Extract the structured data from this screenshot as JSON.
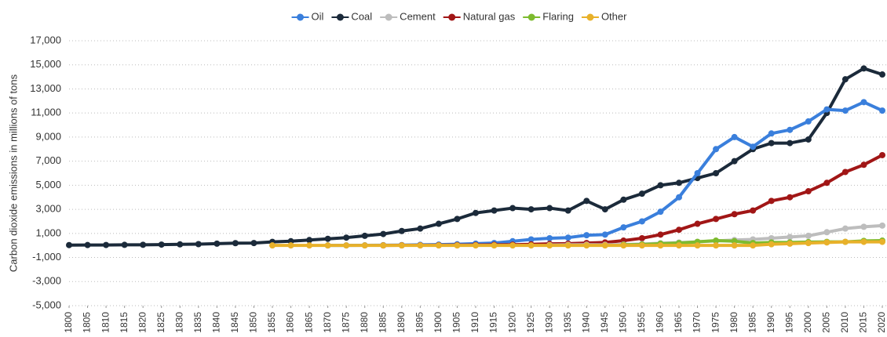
{
  "chart_data": {
    "type": "line",
    "y_label": "Carbon dioxide emissions in millions of tons",
    "x": [
      1800,
      1805,
      1810,
      1815,
      1820,
      1825,
      1830,
      1835,
      1840,
      1845,
      1850,
      1855,
      1860,
      1865,
      1870,
      1875,
      1880,
      1885,
      1890,
      1895,
      1900,
      1905,
      1910,
      1915,
      1920,
      1925,
      1930,
      1935,
      1940,
      1945,
      1950,
      1955,
      1960,
      1965,
      1970,
      1975,
      1980,
      1985,
      1990,
      1995,
      2000,
      2005,
      2010,
      2015,
      2020
    ],
    "xlim": [
      1800,
      2020
    ],
    "xticks": [
      1800,
      1805,
      1810,
      1815,
      1820,
      1825,
      1830,
      1835,
      1840,
      1845,
      1850,
      1855,
      1860,
      1865,
      1870,
      1875,
      1880,
      1885,
      1890,
      1895,
      1900,
      1905,
      1910,
      1915,
      1920,
      1925,
      1930,
      1935,
      1940,
      1945,
      1950,
      1955,
      1960,
      1965,
      1970,
      1975,
      1980,
      1985,
      1990,
      1995,
      2000,
      2005,
      2010,
      2015,
      2020
    ],
    "ylim": [
      -5000,
      17000
    ],
    "yticks": [
      {
        "value": -5000,
        "label": "-5,000"
      },
      {
        "value": -3000,
        "label": "-3,000"
      },
      {
        "value": -1000,
        "label": "-1,000"
      },
      {
        "value": 1000,
        "label": "1,000"
      },
      {
        "value": 3000,
        "label": "3,000"
      },
      {
        "value": 5000,
        "label": "5,000"
      },
      {
        "value": 7000,
        "label": "7,000"
      },
      {
        "value": 9000,
        "label": "9,000"
      },
      {
        "value": 11000,
        "label": "11,000"
      },
      {
        "value": 13000,
        "label": "13,000"
      },
      {
        "value": 15000,
        "label": "15,000"
      },
      {
        "value": 17000,
        "label": "17,000"
      }
    ],
    "grid": true,
    "legend": "top",
    "series": [
      {
        "name": "Oil",
        "color": "#3a7fdc",
        "values": [
          null,
          null,
          null,
          null,
          null,
          null,
          null,
          null,
          null,
          null,
          null,
          null,
          null,
          null,
          2,
          5,
          10,
          20,
          30,
          50,
          70,
          100,
          150,
          200,
          350,
          500,
          600,
          650,
          850,
          900,
          1500,
          2000,
          2800,
          4000,
          6000,
          8000,
          9000,
          8200,
          9300,
          9600,
          10300,
          11300,
          11200,
          11900,
          11200
        ]
      },
      {
        "name": "Coal",
        "color": "#1b2a3a",
        "values": [
          30,
          35,
          40,
          50,
          55,
          70,
          90,
          110,
          150,
          190,
          200,
          300,
          350,
          450,
          550,
          650,
          800,
          950,
          1200,
          1400,
          1800,
          2200,
          2700,
          2900,
          3100,
          3000,
          3100,
          2900,
          3700,
          3000,
          3800,
          4300,
          5000,
          5200,
          5600,
          6000,
          7000,
          8000,
          8500,
          8500,
          8800,
          11000,
          13800,
          14700,
          14200
        ]
      },
      {
        "name": "Cement",
        "color": "#bdbdbd",
        "values": [
          null,
          null,
          null,
          null,
          null,
          null,
          null,
          null,
          null,
          null,
          null,
          null,
          null,
          null,
          null,
          null,
          null,
          null,
          null,
          null,
          null,
          null,
          null,
          null,
          null,
          null,
          40,
          50,
          60,
          50,
          80,
          120,
          180,
          240,
          300,
          380,
          450,
          500,
          600,
          700,
          800,
          1100,
          1400,
          1550,
          1650
        ]
      },
      {
        "name": "Natural gas",
        "color": "#a11616",
        "values": [
          null,
          null,
          null,
          null,
          null,
          null,
          null,
          null,
          null,
          null,
          null,
          null,
          null,
          null,
          null,
          null,
          null,
          1,
          10,
          15,
          20,
          30,
          40,
          50,
          60,
          90,
          130,
          150,
          200,
          250,
          400,
          600,
          900,
          1300,
          1800,
          2200,
          2600,
          2900,
          3700,
          4000,
          4500,
          5200,
          6100,
          6700,
          7500
        ]
      },
      {
        "name": "Flaring",
        "color": "#7dbb2e",
        "values": [
          null,
          null,
          null,
          null,
          null,
          null,
          null,
          null,
          null,
          null,
          null,
          null,
          null,
          null,
          null,
          null,
          null,
          null,
          null,
          null,
          null,
          null,
          null,
          null,
          null,
          null,
          null,
          null,
          null,
          null,
          50,
          80,
          150,
          200,
          300,
          400,
          350,
          200,
          250,
          250,
          280,
          300,
          300,
          380,
          400
        ]
      },
      {
        "name": "Other",
        "color": "#e8b12a",
        "values": [
          null,
          null,
          null,
          null,
          null,
          null,
          null,
          null,
          null,
          null,
          null,
          0,
          0,
          0,
          0,
          0,
          0,
          0,
          0,
          0,
          0,
          0,
          0,
          0,
          0,
          0,
          0,
          0,
          0,
          0,
          0,
          0,
          0,
          0,
          0,
          0,
          0,
          0,
          100,
          150,
          200,
          250,
          300,
          300,
          300
        ]
      }
    ]
  }
}
